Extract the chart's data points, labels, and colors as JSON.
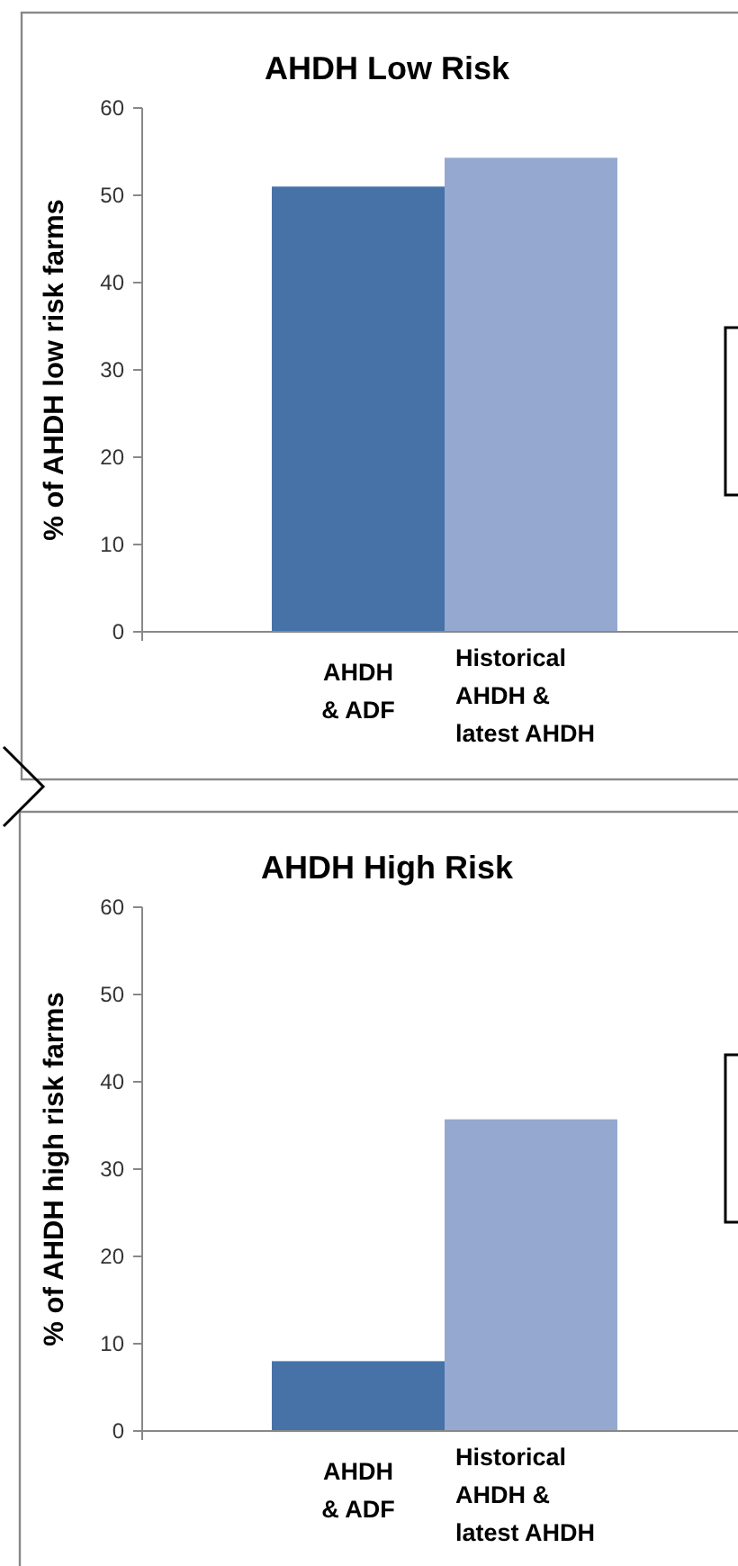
{
  "chart_data": [
    {
      "type": "bar",
      "title": "AHDH Low Risk",
      "ylabel": "% of AHDH low risk farms",
      "categories": [
        "AHDH\n& ADF",
        "Historical\nAHDH &\nlatest AHDH"
      ],
      "values": [
        51.0,
        54.3
      ],
      "colors": [
        "#4672a8",
        "#95a9d0"
      ],
      "ylim": [
        0,
        60
      ],
      "yticks": [
        0,
        10,
        20,
        30,
        40,
        50,
        60
      ],
      "grid": false
    },
    {
      "type": "bar",
      "title": "AHDH High Risk",
      "ylabel": "% of AHDH high risk farms",
      "categories": [
        "AHDH\n& ADF",
        "Historical\nAHDH &\nlatest AHDH"
      ],
      "values": [
        8.0,
        35.7
      ],
      "colors": [
        "#4672a8",
        "#95a9d0"
      ],
      "ylim": [
        0,
        60
      ],
      "yticks": [
        0,
        10,
        20,
        30,
        40,
        50,
        60
      ],
      "grid": false
    }
  ]
}
